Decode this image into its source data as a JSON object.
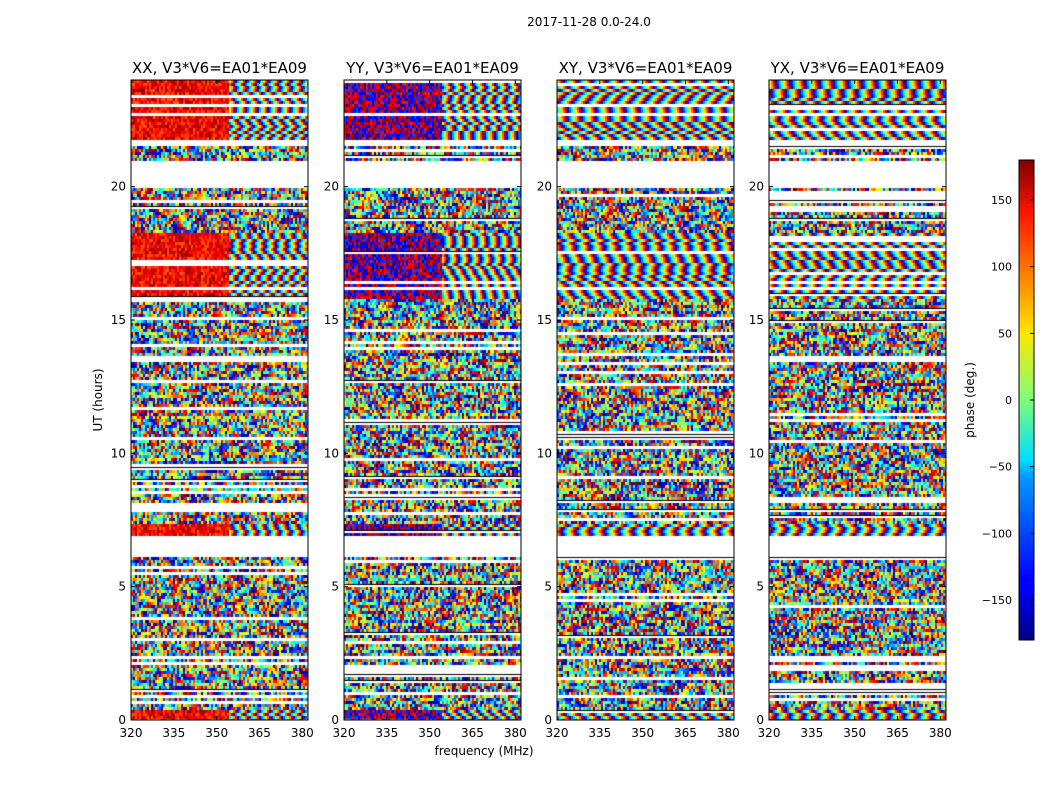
{
  "chart_data": {
    "type": "heatmap",
    "suptitle": "2017-11-28 0.0-24.0",
    "xlabel": "frequency (MHz)",
    "ylabel": "UT (hours)",
    "xlim": [
      320,
      382
    ],
    "ylim": [
      0,
      24
    ],
    "xticks": [
      "320",
      "335",
      "350",
      "365",
      "380"
    ],
    "xtick_values": [
      320,
      335,
      350,
      365,
      380
    ],
    "yticks": [
      "0",
      "5",
      "10",
      "15",
      "20"
    ],
    "ytick_values": [
      0,
      5,
      10,
      15,
      20
    ],
    "colorbar": {
      "label": "phase (deg.)",
      "range": [
        -180,
        180
      ],
      "ticks": [
        "150",
        "100",
        "50",
        "0",
        "−50",
        "−100",
        "−150"
      ],
      "tick_values": [
        150,
        100,
        50,
        0,
        -50,
        -100,
        -150
      ],
      "colormap": "jet"
    },
    "panels": [
      {
        "title": "XX, V3*V6=EA01*EA09",
        "pol": "XX",
        "warm_bias": true
      },
      {
        "title": "YY, V3*V6=EA01*EA09",
        "pol": "YY",
        "warm_bias": false
      },
      {
        "title": "XY, V3*V6=EA01*EA09",
        "pol": "XY",
        "warm_bias": null
      },
      {
        "title": "YX, V3*V6=EA01*EA09",
        "pol": "YX",
        "warm_bias": null
      }
    ],
    "blank_ut_ranges": [
      [
        20.0,
        21.0
      ],
      [
        21.5,
        21.75
      ],
      [
        22.6,
        22.75
      ],
      [
        6.1,
        6.95
      ],
      [
        2.3,
        2.45
      ],
      [
        16.1,
        16.2
      ]
    ],
    "coherent_ut_ranges": [
      [
        0.0,
        0.35
      ],
      [
        6.95,
        7.3
      ],
      [
        15.8,
        18.3
      ],
      [
        21.8,
        24.0
      ]
    ]
  }
}
